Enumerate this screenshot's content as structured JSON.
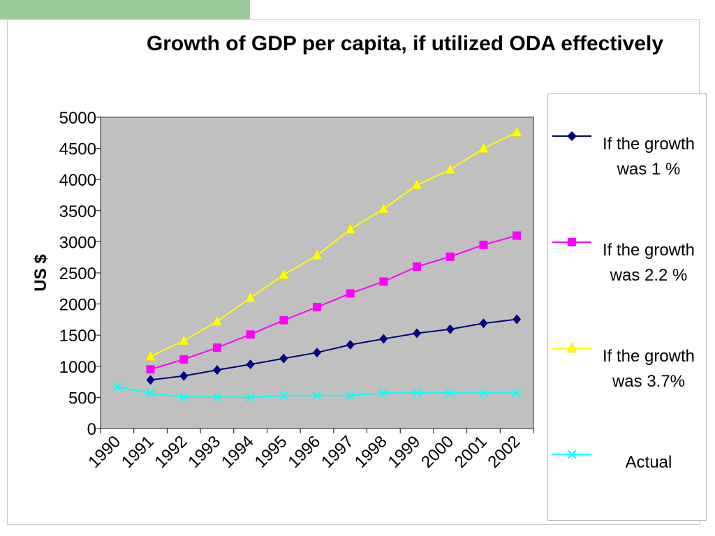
{
  "slide": {
    "accent_color": "#99cc99"
  },
  "chart_data": {
    "type": "line",
    "title": "Growth of GDP per capita, if utilized ODA effectively",
    "xlabel": "",
    "ylabel": "US $",
    "categories": [
      "1990",
      "1991",
      "1992",
      "1993",
      "1994",
      "1995",
      "1996",
      "1997",
      "1998",
      "1999",
      "2000",
      "2001",
      "2002"
    ],
    "ylim": [
      0,
      5000
    ],
    "yticks": [
      "0",
      "500",
      "1000",
      "1500",
      "2000",
      "2500",
      "3000",
      "3500",
      "4000",
      "4500",
      "5000"
    ],
    "grid": false,
    "plot_background": "#c0c0c0",
    "legend_position": "right",
    "series": [
      {
        "name": "If the growth was 1 %",
        "color": "#000080",
        "marker": "diamond",
        "values": [
          null,
          780,
          845,
          940,
          1030,
          1125,
          1220,
          1345,
          1440,
          1530,
          1595,
          1690,
          1755
        ]
      },
      {
        "name": "If the growth was 2.2 %",
        "color": "#ff00ff",
        "marker": "square",
        "values": [
          null,
          950,
          1110,
          1300,
          1510,
          1740,
          1950,
          2170,
          2360,
          2600,
          2760,
          2950,
          3100
        ]
      },
      {
        "name": "If the growth was 3.7%",
        "color": "#ffff00",
        "marker": "triangle",
        "values": [
          null,
          1160,
          1410,
          1720,
          2100,
          2470,
          2780,
          3200,
          3530,
          3910,
          4160,
          4500,
          4760
        ]
      },
      {
        "name": "Actual",
        "color": "#00ffff",
        "marker": "x",
        "values": [
          670,
          570,
          505,
          505,
          500,
          530,
          530,
          530,
          570,
          570,
          570,
          570,
          570
        ]
      }
    ]
  }
}
